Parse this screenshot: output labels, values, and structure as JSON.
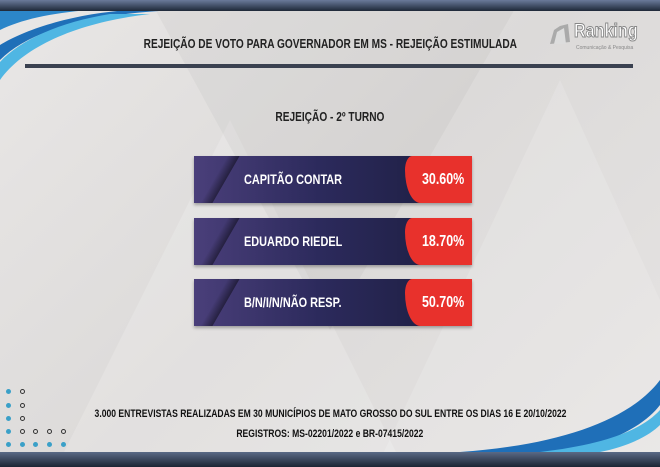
{
  "header": {
    "title": "REJEIÇÃO DE VOTO PARA GOVERNADOR EM MS - REJEIÇÃO ESTIMULADA",
    "logo_text": "Ranking",
    "logo_subtext": "Comunicação & Pesquisa"
  },
  "section": {
    "subtitle": "REJEIÇÃO - 2º TURNO"
  },
  "results": [
    {
      "name": "CAPITÃO CONTAR",
      "value": "30.60%"
    },
    {
      "name": "EDUARDO RIEDEL",
      "value": "18.70%"
    },
    {
      "name": "B/N/I/N/NÃO RESP.",
      "value": "50.70%"
    }
  ],
  "footer": {
    "line1": "3.000 ENTREVISTAS REALIZADAS EM 30 MUNICÍPIOS DE MATO GROSSO DO SUL ENTRE OS DIAS 16 E 20/10/2022",
    "line2": "REGISTROS: MS-02201/2022 e BR-07415/2022"
  },
  "colors": {
    "accent": "#e8312c",
    "bar": "#2c2a5c",
    "swoosh": "#1f6fb8"
  }
}
